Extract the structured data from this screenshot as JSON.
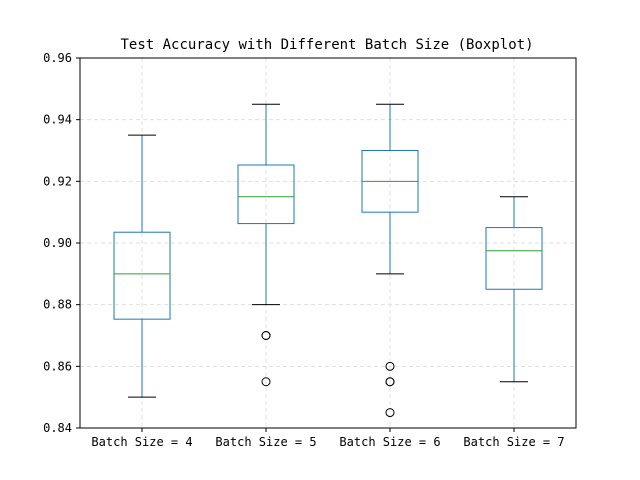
{
  "chart_data": {
    "type": "boxplot",
    "title": "Test Accuracy with Different Batch Size (Boxplot)",
    "xlabel": "",
    "ylabel": "",
    "ylim": [
      0.84,
      0.96
    ],
    "yticks": [
      "0.84",
      "0.86",
      "0.88",
      "0.90",
      "0.92",
      "0.94",
      "0.96"
    ],
    "grid": true,
    "categories": [
      "Batch Size = 4",
      "Batch Size = 5",
      "Batch Size = 6",
      "Batch Size = 7"
    ],
    "boxes": [
      {
        "whisker_low": 0.85,
        "q1": 0.8753,
        "median": 0.89,
        "q3": 0.9035,
        "whisker_high": 0.935,
        "outliers": []
      },
      {
        "whisker_low": 0.88,
        "q1": 0.9063,
        "median": 0.915,
        "q3": 0.9253,
        "whisker_high": 0.945,
        "outliers": [
          0.87,
          0.87,
          0.855
        ]
      },
      {
        "whisker_low": 0.89,
        "q1": 0.91,
        "median": 0.92,
        "q3": 0.93,
        "whisker_high": 0.945,
        "outliers": [
          0.86,
          0.855,
          0.855,
          0.845
        ]
      },
      {
        "whisker_low": 0.855,
        "q1": 0.885,
        "median": 0.8975,
        "q3": 0.905,
        "whisker_high": 0.915,
        "outliers": []
      }
    ],
    "colors": {
      "box": "#1f77b4",
      "median": "#2ca02c",
      "whisker": "#1f77b4",
      "cap": "#000000",
      "flier": "#000000",
      "grid": "#e0e0e0"
    }
  }
}
